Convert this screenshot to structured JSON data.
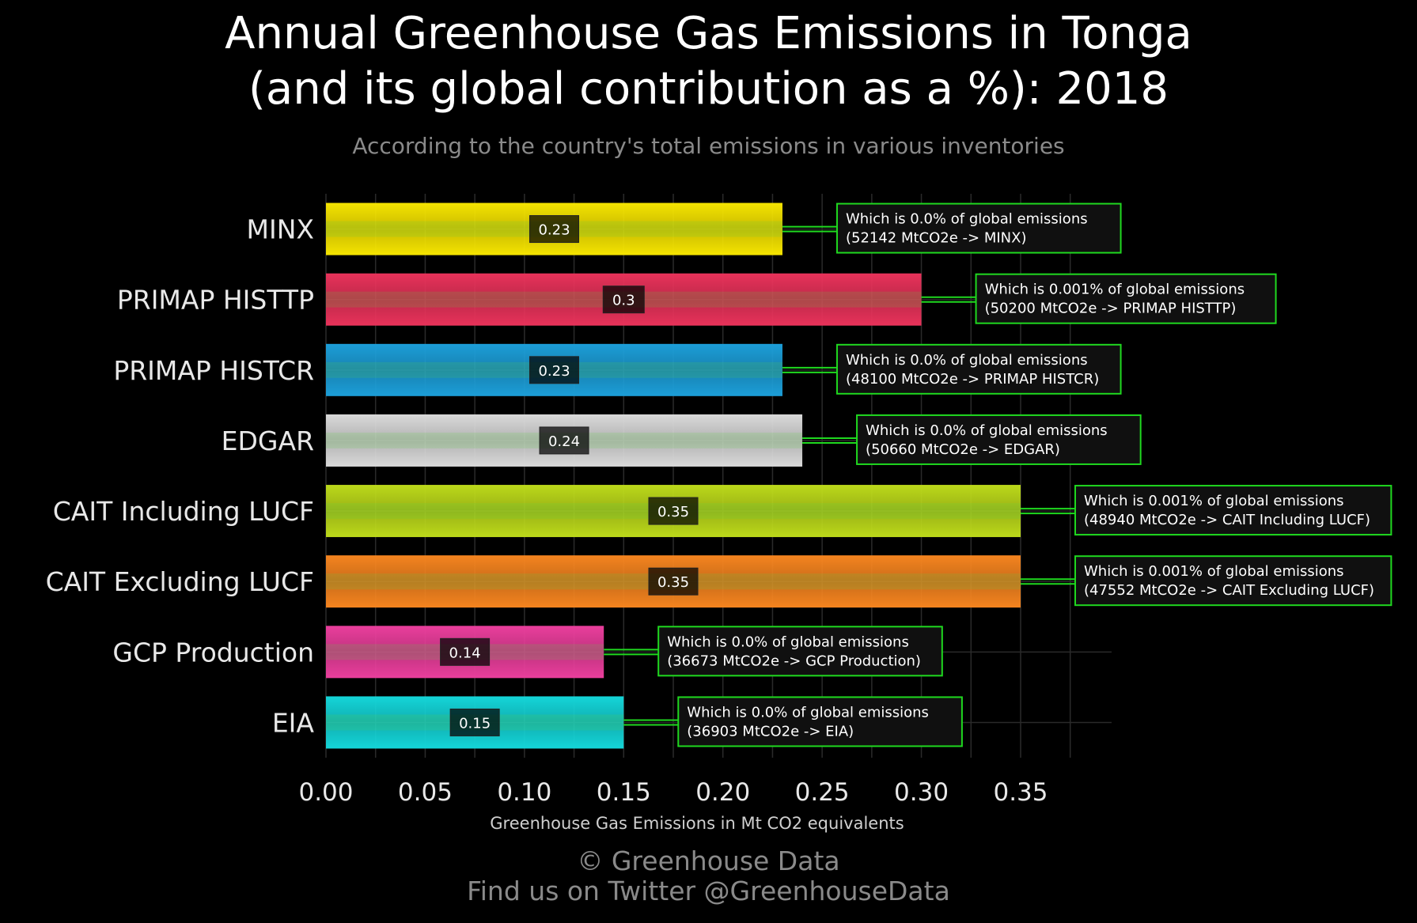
{
  "header": {
    "title_line1": "Annual Greenhouse Gas Emissions in Tonga",
    "title_line2": "(and its global contribution as a %): 2018",
    "subtitle": "According to the country's total emissions in various inventories"
  },
  "footer": {
    "line1": "© Greenhouse Data",
    "line2": "Find us on Twitter @GreenhouseData"
  },
  "chart_data": {
    "type": "bar",
    "orientation": "horizontal",
    "title": "Annual Greenhouse Gas Emissions in Tonga (and its global contribution as a %): 2018",
    "subtitle": "According to the country's total emissions in various inventories",
    "xlabel": "Greenhouse Gas Emissions in Mt CO2 equivalents",
    "ylabel": "",
    "xlim": [
      0,
      0.395
    ],
    "x_ticks": [
      "0.00",
      "0.05",
      "0.10",
      "0.15",
      "0.20",
      "0.25",
      "0.30",
      "0.35"
    ],
    "x_tick_values": [
      0,
      0.05,
      0.1,
      0.15,
      0.2,
      0.25,
      0.3,
      0.35
    ],
    "grid": true,
    "categories": [
      "MINX",
      "PRIMAP HISTTP",
      "PRIMAP HISTCR",
      "EDGAR",
      "CAIT Including LUCF",
      "CAIT Excluding LUCF",
      "GCP Production",
      "EIA"
    ],
    "values": [
      0.23,
      0.3,
      0.23,
      0.24,
      0.35,
      0.35,
      0.14,
      0.15
    ],
    "value_labels": [
      "0.23",
      "0.3",
      "0.23",
      "0.24",
      "0.35",
      "0.35",
      "0.14",
      "0.15"
    ],
    "colors": [
      "#f5e400",
      "#e8325a",
      "#1c9ed8",
      "#d9d9d9",
      "#bcd91a",
      "#f5841f",
      "#ea3e9c",
      "#14d5d8"
    ],
    "annotations": [
      {
        "line1": "Which is 0.0% of global emissions",
        "line2": "(52142 MtCO2e -> MINX)"
      },
      {
        "line1": "Which is 0.001% of global emissions",
        "line2": "(50200 MtCO2e -> PRIMAP HISTTP)"
      },
      {
        "line1": "Which is 0.0% of global emissions",
        "line2": "(48100 MtCO2e -> PRIMAP HISTCR)"
      },
      {
        "line1": "Which is 0.0% of global emissions",
        "line2": "(50660 MtCO2e -> EDGAR)"
      },
      {
        "line1": "Which is 0.001% of global emissions",
        "line2": "(48940 MtCO2e -> CAIT Including LUCF)"
      },
      {
        "line1": "Which is 0.001% of global emissions",
        "line2": "(47552 MtCO2e -> CAIT Excluding LUCF)"
      },
      {
        "line1": "Which is 0.0% of global emissions",
        "line2": "(36673 MtCO2e -> GCP Production)"
      },
      {
        "line1": "Which is 0.0% of global emissions",
        "line2": "(36903 MtCO2e -> EIA)"
      }
    ],
    "annotation_border_color": "#1fd81f",
    "grid_color": "#2a2a2a"
  }
}
